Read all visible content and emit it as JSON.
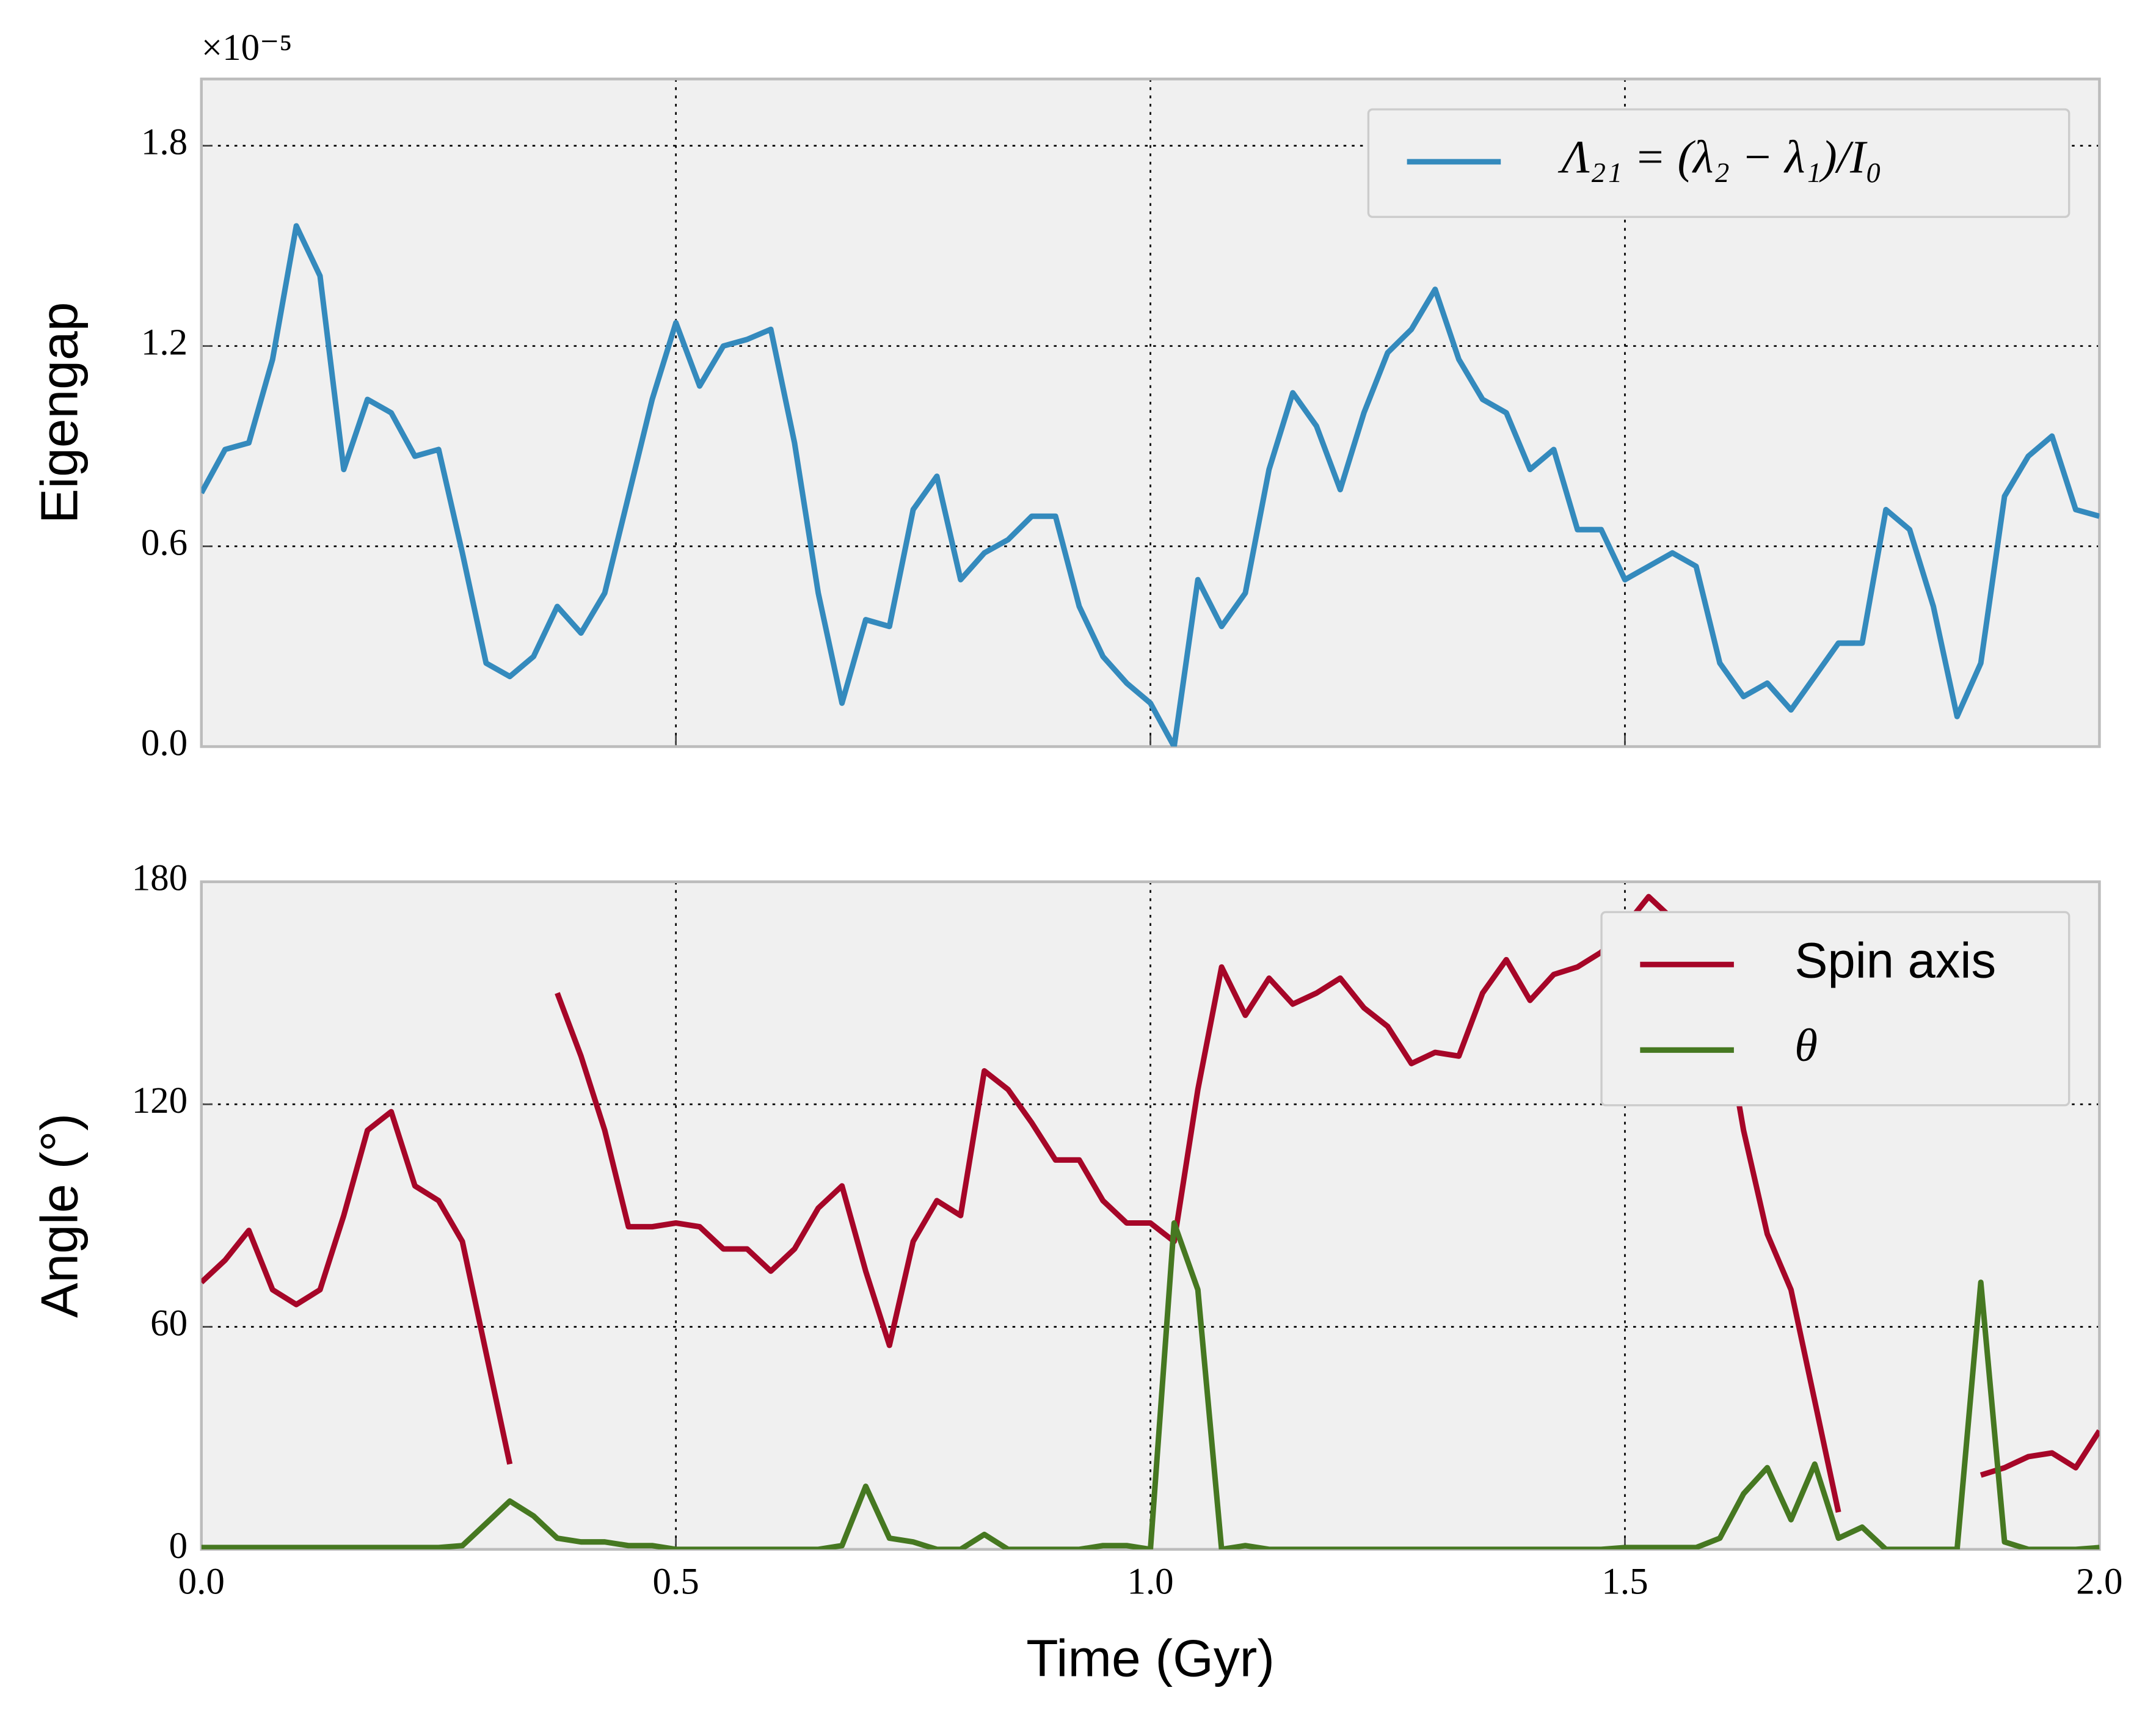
{
  "chart_data": [
    {
      "type": "line",
      "y_label": "Eigengap",
      "y_offset_label": "×10⁻⁵",
      "x": [
        0,
        0.025,
        0.05,
        0.075,
        0.1,
        0.125,
        0.15,
        0.175,
        0.2,
        0.225,
        0.25,
        0.275,
        0.3,
        0.325,
        0.35,
        0.375,
        0.4,
        0.425,
        0.45,
        0.475,
        0.5,
        0.525,
        0.55,
        0.575,
        0.6,
        0.625,
        0.65,
        0.675,
        0.7,
        0.725,
        0.75,
        0.775,
        0.8,
        0.825,
        0.85,
        0.875,
        0.9,
        0.925,
        0.95,
        0.975,
        1.0,
        1.025,
        1.05,
        1.075,
        1.1,
        1.125,
        1.15,
        1.175,
        1.2,
        1.225,
        1.25,
        1.275,
        1.3,
        1.325,
        1.35,
        1.375,
        1.4,
        1.425,
        1.45,
        1.475,
        1.5,
        1.525,
        1.55,
        1.575,
        1.6,
        1.625,
        1.65,
        1.675,
        1.7,
        1.725,
        1.75,
        1.775,
        1.8,
        1.825,
        1.85,
        1.875,
        1.9,
        1.925,
        1.95,
        1.975,
        2.0
      ],
      "series": [
        {
          "name": "Λ₂₁ = (λ₂ − λ₁)/I₀",
          "color": "#348abd",
          "values": [
            0.76,
            0.89,
            0.91,
            1.16,
            1.56,
            1.41,
            0.83,
            1.04,
            1.0,
            0.87,
            0.89,
            0.58,
            0.25,
            0.21,
            0.27,
            0.42,
            0.34,
            0.46,
            0.75,
            1.04,
            1.27,
            1.08,
            1.2,
            1.22,
            1.25,
            0.91,
            0.46,
            0.13,
            0.38,
            0.36,
            0.71,
            0.81,
            0.5,
            0.58,
            0.62,
            0.69,
            0.69,
            0.42,
            0.27,
            0.19,
            0.13,
            0.0,
            0.5,
            0.36,
            0.46,
            0.83,
            1.06,
            0.96,
            0.77,
            1.0,
            1.18,
            1.25,
            1.37,
            1.16,
            1.04,
            1.0,
            0.83,
            0.89,
            0.65,
            0.65,
            0.5,
            0.54,
            0.58,
            0.54,
            0.25,
            0.15,
            0.19,
            0.11,
            0.21,
            0.31,
            0.31,
            0.71,
            0.65,
            0.42,
            0.09,
            0.25,
            0.75,
            0.87,
            0.93,
            0.71,
            0.69
          ]
        }
      ],
      "xlim": [
        0,
        2
      ],
      "xticks": [
        0,
        0.5,
        1,
        1.5,
        2
      ],
      "xtick_labels": false,
      "ylim": [
        0,
        2.0
      ],
      "yticks": [
        {
          "value": 0,
          "label": "0.0"
        },
        0.6,
        1.2,
        1.8
      ],
      "grid": true,
      "legend": "upper right"
    },
    {
      "type": "line",
      "x_label": "Time (Gyr)",
      "y_label": "Angle (°)",
      "x": [
        0,
        0.025,
        0.05,
        0.075,
        0.1,
        0.125,
        0.15,
        0.175,
        0.2,
        0.225,
        0.25,
        0.275,
        0.3,
        0.325,
        0.35,
        0.375,
        0.4,
        0.425,
        0.45,
        0.475,
        0.5,
        0.525,
        0.55,
        0.575,
        0.6,
        0.625,
        0.65,
        0.675,
        0.7,
        0.725,
        0.75,
        0.775,
        0.8,
        0.825,
        0.85,
        0.875,
        0.9,
        0.925,
        0.95,
        0.975,
        1.0,
        1.025,
        1.05,
        1.075,
        1.1,
        1.125,
        1.15,
        1.175,
        1.2,
        1.225,
        1.25,
        1.275,
        1.3,
        1.325,
        1.35,
        1.375,
        1.4,
        1.425,
        1.45,
        1.475,
        1.5,
        1.525,
        1.55,
        1.575,
        1.6,
        1.625,
        1.65,
        1.675,
        1.7,
        1.725,
        1.75,
        1.775,
        1.8,
        1.825,
        1.85,
        1.875,
        1.9,
        1.925,
        1.95,
        1.975,
        2.0
      ],
      "series": [
        {
          "name": "Spin axis",
          "color": "#a60628",
          "values": [
            72,
            78,
            86,
            70,
            66,
            70,
            90,
            113,
            118,
            98,
            94,
            83,
            53,
            23,
            null,
            150,
            133,
            113,
            87,
            87,
            88,
            87,
            81,
            81,
            75,
            81,
            92,
            98,
            75,
            55,
            83,
            94,
            90,
            129,
            124,
            115,
            105,
            105,
            94,
            88,
            88,
            83,
            124,
            157,
            144,
            154,
            147,
            150,
            154,
            146,
            141,
            131,
            134,
            133,
            150,
            159,
            148,
            155,
            157,
            161,
            168,
            176,
            170,
            null,
            150,
            113,
            85,
            70,
            40,
            10,
            null,
            null,
            null,
            null,
            null,
            20,
            22,
            25,
            26,
            22,
            32
          ]
        },
        {
          "name": "θ",
          "color": "#467821",
          "values": [
            0.5,
            0.5,
            0.5,
            0.5,
            0.5,
            0.5,
            0.5,
            0.5,
            0.5,
            0.5,
            0.5,
            1,
            7,
            13,
            9,
            3,
            2,
            2,
            1,
            1,
            0,
            0,
            0,
            0,
            0,
            0,
            0,
            1,
            17,
            3,
            2,
            0,
            0,
            4,
            0,
            0,
            0,
            0,
            1,
            1,
            0,
            88,
            70,
            0,
            1,
            0,
            0,
            0,
            0,
            0,
            0,
            0,
            0,
            0,
            0,
            0,
            0,
            0,
            0,
            0,
            0.5,
            0.5,
            0.5,
            0.5,
            3,
            15,
            22,
            8,
            23,
            3,
            6,
            0,
            0,
            0,
            0,
            72,
            2,
            0,
            0,
            0,
            0.5
          ]
        }
      ],
      "xlim": [
        0,
        2
      ],
      "xticks": [
        {
          "value": 0,
          "label": "0.0"
        },
        0.5,
        {
          "value": 1,
          "label": "1.0"
        },
        1.5,
        {
          "value": 2,
          "label": "2.0"
        }
      ],
      "ylim": [
        0,
        180
      ],
      "yticks": [
        0,
        60,
        120,
        180
      ],
      "grid": true,
      "legend": "upper right"
    }
  ]
}
